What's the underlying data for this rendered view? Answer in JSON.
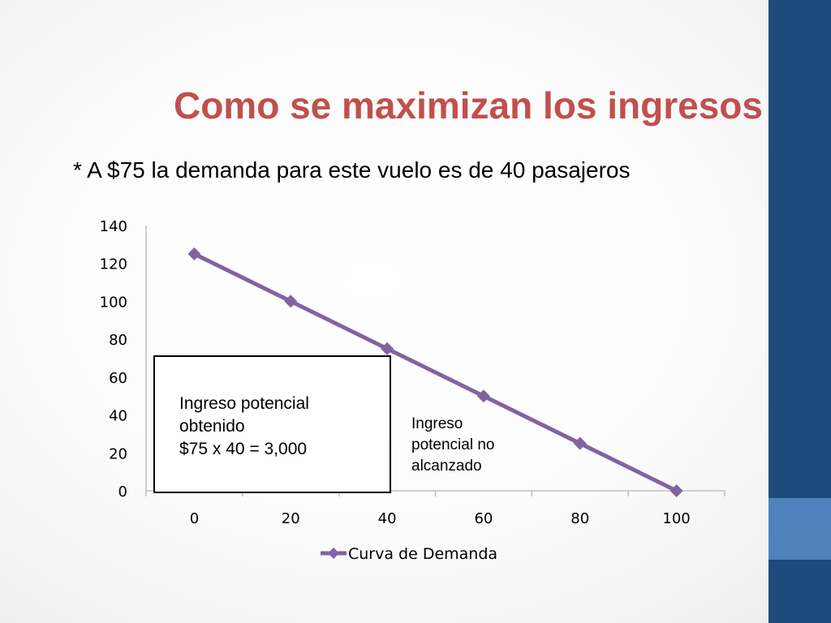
{
  "slide": {
    "title": "Como se maximizan los ingresos",
    "subtitle": "* A $75 la demanda para este vuelo es de 40 pasajeros",
    "colors": {
      "title": "#c0504d",
      "side_bar": "#1f4a7c",
      "side_accent": "#4f81bd",
      "series": "#8064a2"
    }
  },
  "callouts": {
    "obtained": "Ingreso potencial\nobtenido\n$75 x 40 = 3,000",
    "missed": "Ingreso\npotencial no\nalcanzado"
  },
  "chart_data": {
    "type": "line",
    "x": [
      0,
      20,
      40,
      60,
      80,
      100
    ],
    "x_tick_labels": [
      "0",
      "20",
      "40",
      "60",
      "80",
      "100"
    ],
    "y_tick_labels": [
      "0",
      "20",
      "40",
      "60",
      "80",
      "100",
      "120",
      "140"
    ],
    "ylim": [
      0,
      140
    ],
    "series": [
      {
        "name": "Curva de Demanda",
        "values": [
          125,
          100,
          75,
          50,
          25,
          0
        ],
        "color": "#8064a2",
        "marker": "diamond"
      }
    ],
    "legend_position": "bottom",
    "grid": false
  }
}
